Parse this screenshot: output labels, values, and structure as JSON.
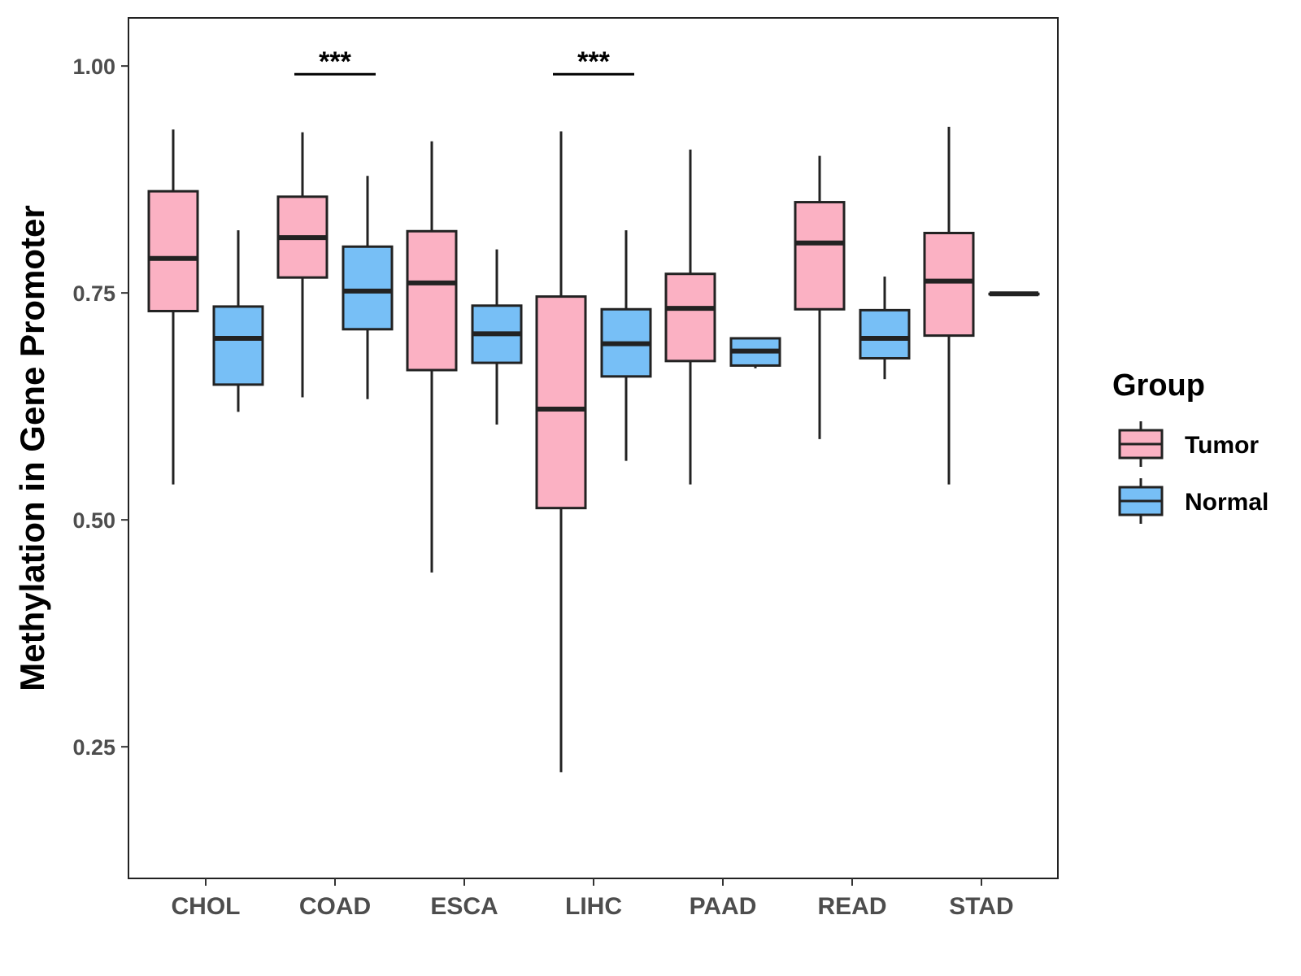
{
  "chart_data": {
    "type": "box",
    "title": "",
    "xlabel": "",
    "ylabel": "Methylation in Gene Promoter",
    "ylim": [
      0.105,
      1.053
    ],
    "yticks": [
      0.25,
      0.5,
      0.75,
      1.0
    ],
    "ytick_labels": [
      "0.25",
      "0.50",
      "0.75",
      "1.00"
    ],
    "categories": [
      "CHOL",
      "COAD",
      "ESCA",
      "LIHC",
      "PAAD",
      "READ",
      "STAD"
    ],
    "legend": {
      "title": "Group",
      "position": "right",
      "entries": [
        "Tumor",
        "Normal"
      ]
    },
    "colors": {
      "Tumor": "#FBB1C3",
      "Normal": "#77BFF6",
      "outline": "#222222"
    },
    "series": [
      {
        "name": "Tumor",
        "boxes": [
          {
            "category": "CHOL",
            "min": 0.539,
            "q1": 0.73,
            "median": 0.788,
            "q3": 0.862,
            "max": 0.93
          },
          {
            "category": "COAD",
            "min": 0.635,
            "q1": 0.767,
            "median": 0.811,
            "q3": 0.856,
            "max": 0.927
          },
          {
            "category": "ESCA",
            "min": 0.442,
            "q1": 0.665,
            "median": 0.761,
            "q3": 0.818,
            "max": 0.917
          },
          {
            "category": "LIHC",
            "min": 0.222,
            "q1": 0.513,
            "median": 0.622,
            "q3": 0.746,
            "max": 0.928
          },
          {
            "category": "PAAD",
            "min": 0.539,
            "q1": 0.675,
            "median": 0.733,
            "q3": 0.771,
            "max": 0.908
          },
          {
            "category": "READ",
            "min": 0.589,
            "q1": 0.732,
            "median": 0.805,
            "q3": 0.85,
            "max": 0.901
          },
          {
            "category": "STAD",
            "min": 0.539,
            "q1": 0.703,
            "median": 0.763,
            "q3": 0.816,
            "max": 0.933
          }
        ]
      },
      {
        "name": "Normal",
        "boxes": [
          {
            "category": "CHOL",
            "min": 0.619,
            "q1": 0.649,
            "median": 0.7,
            "q3": 0.735,
            "max": 0.819
          },
          {
            "category": "COAD",
            "min": 0.633,
            "q1": 0.71,
            "median": 0.752,
            "q3": 0.801,
            "max": 0.879
          },
          {
            "category": "ESCA",
            "min": 0.605,
            "q1": 0.673,
            "median": 0.705,
            "q3": 0.736,
            "max": 0.798
          },
          {
            "category": "LIHC",
            "min": 0.565,
            "q1": 0.658,
            "median": 0.694,
            "q3": 0.732,
            "max": 0.819
          },
          {
            "category": "PAAD",
            "min": 0.667,
            "q1": 0.67,
            "median": 0.686,
            "q3": 0.7,
            "max": 0.7
          },
          {
            "category": "READ",
            "min": 0.655,
            "q1": 0.678,
            "median": 0.7,
            "q3": 0.731,
            "max": 0.768
          },
          {
            "category": "STAD",
            "min": 0.749,
            "q1": 0.749,
            "median": 0.749,
            "q3": 0.749,
            "max": 0.749
          }
        ]
      }
    ],
    "significance": [
      {
        "category": "COAD",
        "label": "***",
        "y": 0.991
      },
      {
        "category": "LIHC",
        "label": "***",
        "y": 0.991
      }
    ]
  }
}
